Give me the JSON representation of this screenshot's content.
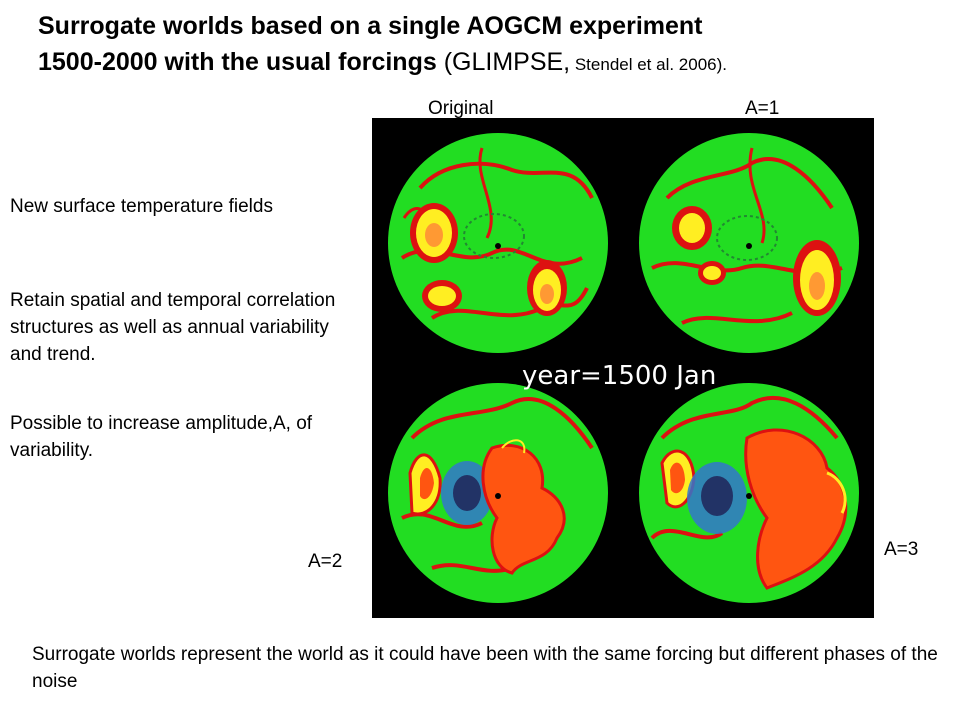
{
  "title": {
    "line1": "Surrogate worlds based on a single AOGCM experiment",
    "line2_bold": "1500-2000 with the usual forcings",
    "line2_source": " (GLIMPSE,",
    "line2_citation": " Stendel et al. 2006)."
  },
  "panel_labels": {
    "original": "Original",
    "a1": "A=1",
    "a2": "A=2",
    "a3": "A=3"
  },
  "side_text": {
    "p1": "New surface temperature fields",
    "p2": "Retain spatial and temporal correlation structures as well as annual variability and trend.",
    "p3": "Possible to increase amplitude,A, of variability."
  },
  "figure": {
    "year_label": "year=1500 Jan",
    "colors": {
      "background": "#000000",
      "land_field": "#22dd22",
      "contour": "#dd1111",
      "warm": "#ffee22",
      "hot": "#ff5511",
      "cold": "#3377cc"
    }
  },
  "footer": "Surrogate worlds represent the world as it could have been  with the same forcing but different phases of the noise"
}
